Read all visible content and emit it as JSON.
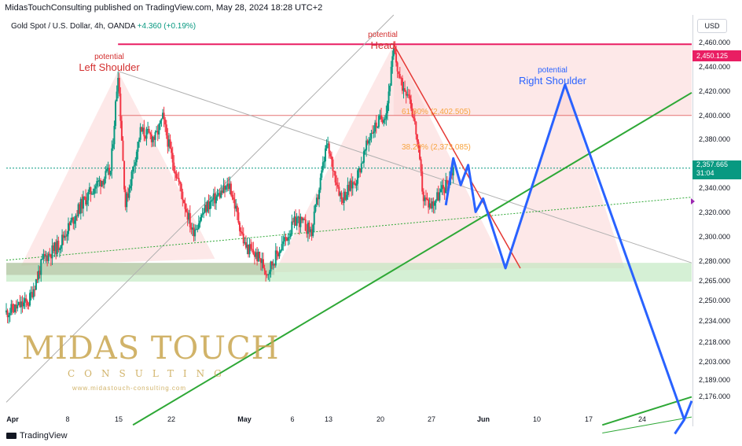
{
  "header": {
    "publisher_line": "MidasTouchConsulting published on TradingView.com, May 28, 2024 18:28 UTC+2"
  },
  "symbol": {
    "name": "Gold Spot / U.S. Dollar, 4h, OANDA",
    "change": "+4.360 (+0.19%)"
  },
  "price_axis": {
    "currency": "USD",
    "ticks": [
      "2,460.000",
      "2,440.000",
      "2,420.000",
      "2,400.000",
      "2,380.000",
      "2,357.665",
      "2,340.000",
      "2,320.000",
      "2,300.000",
      "2,280.000",
      "2,265.000",
      "2,250.000",
      "2,234.000",
      "2,218.000",
      "2,203.000",
      "2,189.000",
      "2,176.000"
    ],
    "current_price": "2,357.665",
    "countdown": "31:04",
    "head_price": "2,450.125"
  },
  "date_axis": [
    "Apr",
    "8",
    "15",
    "22",
    "May",
    "6",
    "13",
    "20",
    "27",
    "Jun",
    "10",
    "17",
    "24"
  ],
  "annotations": {
    "left_shoulder_small": "potential",
    "left_shoulder_big": "Left Shoulder",
    "head_small": "potential",
    "head_big": "Head",
    "right_shoulder_small": "potential",
    "right_shoulder_big": "Right Shoulder",
    "fib_618": "61.80% (2,402.505)",
    "fib_382": "38.20% (2,373.085)"
  },
  "watermark": {
    "brand": "MIDAS TOUCH",
    "sub": "CONSULTING",
    "url": "www.midastouch-consulting.com"
  },
  "footer": {
    "brand": "TradingView"
  },
  "colors": {
    "up": "#089981",
    "down": "#f23645",
    "head_line": "#e91e63",
    "projection": "#2962ff",
    "trend_green": "#2ea836",
    "fib": "#f7a440",
    "watermark": "#c9a650"
  },
  "chart_data": {
    "type": "candlestick",
    "title": "Gold Spot / U.S. Dollar, 4h, OANDA",
    "ylim": [
      2165,
      2472
    ],
    "x_range": [
      "2024-03-29",
      "2024-06-29"
    ],
    "anchors": [
      {
        "date": "2024-03-29",
        "close": 2250
      },
      {
        "date": "2024-04-01",
        "close": 2258
      },
      {
        "date": "2024-04-03",
        "close": 2290
      },
      {
        "date": "2024-04-05",
        "close": 2300
      },
      {
        "date": "2024-04-08",
        "close": 2330
      },
      {
        "date": "2024-04-10",
        "close": 2345
      },
      {
        "date": "2024-04-12",
        "close": 2355
      },
      {
        "date": "2024-04-13",
        "close": 2430
      },
      {
        "date": "2024-04-14",
        "close": 2330
      },
      {
        "date": "2024-04-16",
        "close": 2385
      },
      {
        "date": "2024-04-18",
        "close": 2380
      },
      {
        "date": "2024-04-19",
        "close": 2395
      },
      {
        "date": "2024-04-20",
        "close": 2370
      },
      {
        "date": "2024-04-22",
        "close": 2330
      },
      {
        "date": "2024-04-23",
        "close": 2310
      },
      {
        "date": "2024-04-25",
        "close": 2330
      },
      {
        "date": "2024-04-28",
        "close": 2345
      },
      {
        "date": "2024-04-30",
        "close": 2300
      },
      {
        "date": "2024-05-02",
        "close": 2290
      },
      {
        "date": "2024-05-03",
        "close": 2280
      },
      {
        "date": "2024-05-05",
        "close": 2300
      },
      {
        "date": "2024-05-07",
        "close": 2320
      },
      {
        "date": "2024-05-09",
        "close": 2310
      },
      {
        "date": "2024-05-11",
        "close": 2375
      },
      {
        "date": "2024-05-13",
        "close": 2335
      },
      {
        "date": "2024-05-15",
        "close": 2350
      },
      {
        "date": "2024-05-17",
        "close": 2385
      },
      {
        "date": "2024-05-19",
        "close": 2400
      },
      {
        "date": "2024-05-20",
        "close": 2445
      },
      {
        "date": "2024-05-21",
        "close": 2420
      },
      {
        "date": "2024-05-22",
        "close": 2415
      },
      {
        "date": "2024-05-23",
        "close": 2385
      },
      {
        "date": "2024-05-24",
        "close": 2335
      },
      {
        "date": "2024-05-25",
        "close": 2330
      },
      {
        "date": "2024-05-27",
        "close": 2345
      },
      {
        "date": "2024-05-28",
        "close": 2357.665
      }
    ],
    "levels": [
      {
        "name": "Head",
        "price": 2450.125
      },
      {
        "name": "Current",
        "price": 2357.665
      },
      {
        "name": "61.80%",
        "price": 2402.505
      },
      {
        "name": "38.20%",
        "price": 2373.085
      }
    ],
    "projection": [
      {
        "date": "2024-05-27",
        "price": 2330
      },
      {
        "date": "2024-05-28",
        "price": 2365
      },
      {
        "date": "2024-05-29",
        "price": 2345
      },
      {
        "date": "2024-05-30",
        "price": 2360
      },
      {
        "date": "2024-05-31",
        "price": 2325
      },
      {
        "date": "2024-06-01",
        "price": 2335
      },
      {
        "date": "2024-06-04",
        "price": 2283
      },
      {
        "date": "2024-06-12",
        "price": 2420
      },
      {
        "date": "2024-06-28",
        "price": 2170
      },
      {
        "date": "2024-06-29",
        "price": 2184
      }
    ]
  }
}
